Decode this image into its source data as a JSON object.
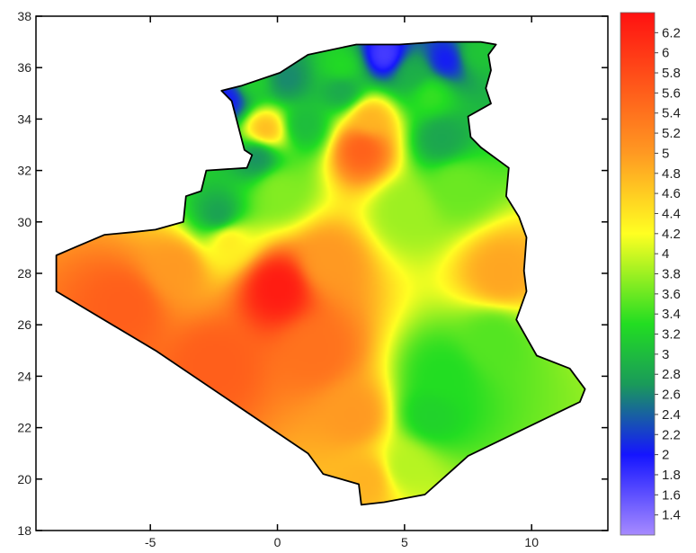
{
  "chart_data": {
    "type": "heatmap",
    "title": "",
    "xlabel": "",
    "ylabel": "",
    "xlim": [
      -9.5,
      13
    ],
    "ylim": [
      18,
      38
    ],
    "x_ticks": [
      {
        "value": -5,
        "label": "-5"
      },
      {
        "value": 0,
        "label": "0"
      },
      {
        "value": 5,
        "label": "5"
      },
      {
        "value": 10,
        "label": "10"
      }
    ],
    "y_ticks": [
      {
        "value": 18,
        "label": "18"
      },
      {
        "value": 20,
        "label": "20"
      },
      {
        "value": 22,
        "label": "22"
      },
      {
        "value": 24,
        "label": "24"
      },
      {
        "value": 26,
        "label": "26"
      },
      {
        "value": 28,
        "label": "28"
      },
      {
        "value": 30,
        "label": "30"
      },
      {
        "value": 32,
        "label": "32"
      },
      {
        "value": 34,
        "label": "34"
      },
      {
        "value": 36,
        "label": "36"
      },
      {
        "value": 38,
        "label": "38"
      }
    ],
    "colorbar": {
      "range": [
        1.2,
        6.4
      ],
      "ticks": [
        {
          "value": 6.2,
          "label": "6.2"
        },
        {
          "value": 6.0,
          "label": "6"
        },
        {
          "value": 5.8,
          "label": "5.8"
        },
        {
          "value": 5.6,
          "label": "5.6"
        },
        {
          "value": 5.4,
          "label": "5.4"
        },
        {
          "value": 5.2,
          "label": "5.2"
        },
        {
          "value": 5.0,
          "label": "5"
        },
        {
          "value": 4.8,
          "label": "4.8"
        },
        {
          "value": 4.6,
          "label": "4.6"
        },
        {
          "value": 4.4,
          "label": "4.4"
        },
        {
          "value": 4.2,
          "label": "4.2"
        },
        {
          "value": 4.0,
          "label": "4"
        },
        {
          "value": 3.8,
          "label": "3.8"
        },
        {
          "value": 3.6,
          "label": "3.6"
        },
        {
          "value": 3.4,
          "label": "3.4"
        },
        {
          "value": 3.2,
          "label": "3.2"
        },
        {
          "value": 3.0,
          "label": "3"
        },
        {
          "value": 2.8,
          "label": "2.8"
        },
        {
          "value": 2.6,
          "label": "2.6"
        },
        {
          "value": 2.4,
          "label": "2.4"
        },
        {
          "value": 2.2,
          "label": "2.2"
        },
        {
          "value": 2.0,
          "label": "2"
        },
        {
          "value": 1.8,
          "label": "1.8"
        },
        {
          "value": 1.6,
          "label": "1.6"
        },
        {
          "value": 1.4,
          "label": "1.4"
        }
      ],
      "stops": [
        {
          "value": 1.2,
          "color": "#a78bff"
        },
        {
          "value": 2.0,
          "color": "#1515ff"
        },
        {
          "value": 2.7,
          "color": "#1a9a5a"
        },
        {
          "value": 3.3,
          "color": "#22dd22"
        },
        {
          "value": 4.2,
          "color": "#ffff22"
        },
        {
          "value": 5.0,
          "color": "#ff9922"
        },
        {
          "value": 6.4,
          "color": "#ff1111"
        }
      ]
    },
    "background_value": 4.0,
    "field_points": [
      {
        "lon": 0.0,
        "lat": 27.5,
        "value": 6.3
      },
      {
        "lon": -6.0,
        "lat": 26.8,
        "value": 5.6
      },
      {
        "lon": -2.5,
        "lat": 24.5,
        "value": 5.6
      },
      {
        "lon": 1.5,
        "lat": 25.0,
        "value": 5.4
      },
      {
        "lon": 3.0,
        "lat": 22.5,
        "value": 5.0
      },
      {
        "lon": 3.5,
        "lat": 20.0,
        "value": 4.8
      },
      {
        "lon": -4.0,
        "lat": 28.3,
        "value": 5.0
      },
      {
        "lon": 2.0,
        "lat": 28.5,
        "value": 5.0
      },
      {
        "lon": -2.0,
        "lat": 29.4,
        "value": 4.4
      },
      {
        "lon": 8.8,
        "lat": 28.0,
        "value": 4.9
      },
      {
        "lon": 3.3,
        "lat": 32.9,
        "value": 5.6
      },
      {
        "lon": 3.6,
        "lat": 34.0,
        "value": 4.8
      },
      {
        "lon": -0.5,
        "lat": 33.6,
        "value": 4.8
      },
      {
        "lon": 6.5,
        "lat": 24.0,
        "value": 3.3
      },
      {
        "lon": 6.0,
        "lat": 22.5,
        "value": 3.2
      },
      {
        "lon": 8.5,
        "lat": 25.5,
        "value": 3.5
      },
      {
        "lon": 5.0,
        "lat": 20.5,
        "value": 3.9
      },
      {
        "lon": 5.0,
        "lat": 30.5,
        "value": 3.8
      },
      {
        "lon": 7.0,
        "lat": 31.5,
        "value": 3.6
      },
      {
        "lon": 0.0,
        "lat": 31.3,
        "value": 3.7
      },
      {
        "lon": -1.0,
        "lat": 35.5,
        "value": 3.2
      },
      {
        "lon": 2.5,
        "lat": 36.0,
        "value": 3.3
      },
      {
        "lon": 6.0,
        "lat": 35.0,
        "value": 3.4
      },
      {
        "lon": 4.2,
        "lat": 36.5,
        "value": 1.7
      },
      {
        "lon": 6.6,
        "lat": 36.3,
        "value": 2.0
      },
      {
        "lon": -2.0,
        "lat": 34.8,
        "value": 2.0
      },
      {
        "lon": 0.3,
        "lat": 35.6,
        "value": 2.6
      },
      {
        "lon": 2.5,
        "lat": 35.2,
        "value": 2.8
      },
      {
        "lon": -0.8,
        "lat": 32.6,
        "value": 2.6
      },
      {
        "lon": -2.3,
        "lat": 30.2,
        "value": 2.7
      },
      {
        "lon": 6.4,
        "lat": 33.3,
        "value": 2.8
      },
      {
        "lon": 1.0,
        "lat": 33.8,
        "value": 3.0
      },
      {
        "lon": 5.3,
        "lat": 35.8,
        "value": 2.9
      },
      {
        "lon": 7.8,
        "lat": 36.6,
        "value": 3.1
      }
    ],
    "boundary": [
      [
        -8.7,
        28.7
      ],
      [
        -8.0,
        29.0
      ],
      [
        -6.8,
        29.5
      ],
      [
        -5.7,
        29.6
      ],
      [
        -4.8,
        29.7
      ],
      [
        -3.7,
        30.0
      ],
      [
        -3.6,
        31.0
      ],
      [
        -3.0,
        31.2
      ],
      [
        -2.8,
        32.0
      ],
      [
        -1.2,
        32.1
      ],
      [
        -1.0,
        32.6
      ],
      [
        -1.3,
        32.8
      ],
      [
        -1.8,
        34.7
      ],
      [
        -2.2,
        35.1
      ],
      [
        -1.4,
        35.3
      ],
      [
        0.1,
        35.8
      ],
      [
        1.2,
        36.5
      ],
      [
        3.1,
        36.9
      ],
      [
        4.8,
        36.9
      ],
      [
        6.3,
        37.0
      ],
      [
        7.4,
        37.0
      ],
      [
        8.0,
        37.0
      ],
      [
        8.6,
        36.9
      ],
      [
        8.3,
        36.5
      ],
      [
        8.4,
        35.9
      ],
      [
        8.2,
        35.2
      ],
      [
        8.4,
        34.6
      ],
      [
        7.5,
        34.1
      ],
      [
        7.6,
        33.3
      ],
      [
        8.0,
        32.9
      ],
      [
        9.1,
        32.1
      ],
      [
        9.0,
        31.0
      ],
      [
        9.5,
        30.2
      ],
      [
        9.8,
        29.4
      ],
      [
        9.7,
        28.1
      ],
      [
        9.8,
        27.3
      ],
      [
        9.4,
        26.2
      ],
      [
        10.2,
        24.8
      ],
      [
        11.5,
        24.3
      ],
      [
        12.1,
        23.5
      ],
      [
        11.9,
        23.0
      ],
      [
        7.5,
        20.9
      ],
      [
        5.8,
        19.4
      ],
      [
        4.2,
        19.1
      ],
      [
        3.3,
        19.0
      ],
      [
        3.2,
        19.8
      ],
      [
        1.8,
        20.2
      ],
      [
        1.2,
        21.0
      ],
      [
        -4.8,
        25.0
      ],
      [
        -8.7,
        27.3
      ]
    ]
  }
}
